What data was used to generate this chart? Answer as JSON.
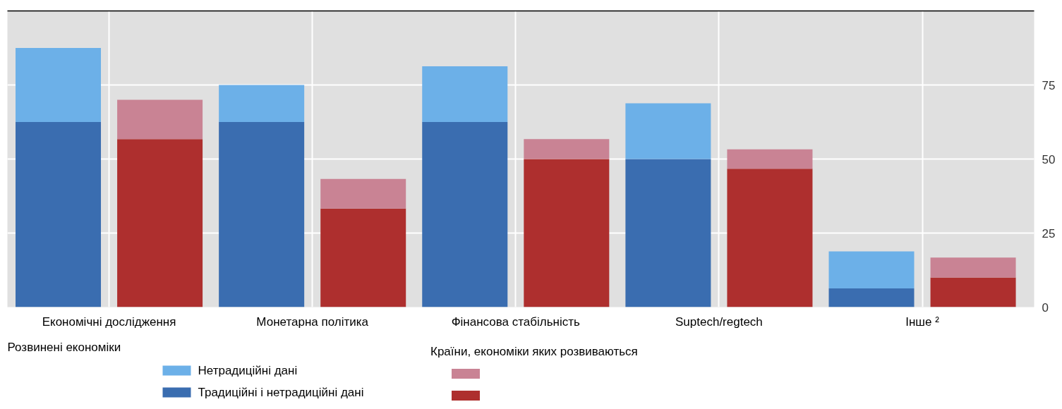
{
  "chart_data": {
    "type": "bar",
    "stacked": true,
    "categories": [
      null,
      null,
      null,
      null,
      null,
      null,
      null,
      null,
      null,
      null
    ],
    "annotations": [
      "Економічні дослідження",
      "Монетарна політика",
      "Фінансова стабільність",
      "Suptech/regtech",
      "Інше ²"
    ],
    "series": [
      {
        "name": "Традиційні і нетрадиційні дані",
        "color": "#3a6db0",
        "values": [
          62.5,
          null,
          62.5,
          null,
          62.5,
          null,
          50,
          null,
          6.3,
          null
        ]
      },
      {
        "name": "Нетрадиційні дані",
        "color": "#6cb0e8",
        "values": [
          25,
          null,
          12.5,
          null,
          18.8,
          null,
          18.8,
          null,
          12.5,
          null
        ]
      },
      {
        "color": "#ae2f2e",
        "values": [
          null,
          56.7,
          null,
          33.3,
          null,
          50,
          null,
          46.7,
          null,
          10
        ]
      },
      {
        "color": "#c98394",
        "values": [
          null,
          13.3,
          null,
          10,
          null,
          6.7,
          null,
          6.6,
          null,
          6.7
        ]
      }
    ],
    "legend_title": [
      "Розвинені економіки",
      "Країни, економіки яких розвиваються"
    ],
    "ylim": [
      0,
      100
    ],
    "yticks": [
      0,
      25,
      50,
      75
    ],
    "grid": true,
    "legend": "bottom"
  }
}
